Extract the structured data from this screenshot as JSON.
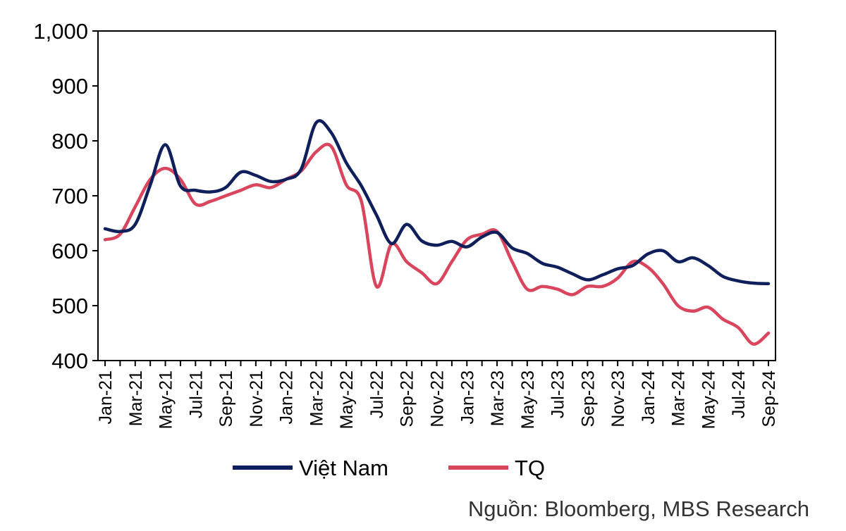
{
  "chart_data": {
    "type": "line",
    "ylim": [
      400,
      1000
    ],
    "yticks": [
      400,
      500,
      600,
      700,
      800,
      900,
      1000
    ],
    "ytick_labels": [
      "400",
      "500",
      "600",
      "700",
      "800",
      "900",
      "1,000"
    ],
    "x": [
      "Jan-21",
      "Feb-21",
      "Mar-21",
      "Apr-21",
      "May-21",
      "Jun-21",
      "Jul-21",
      "Aug-21",
      "Sep-21",
      "Oct-21",
      "Nov-21",
      "Dec-21",
      "Jan-22",
      "Feb-22",
      "Mar-22",
      "Apr-22",
      "May-22",
      "Jun-22",
      "Jul-22",
      "Aug-22",
      "Sep-22",
      "Oct-22",
      "Nov-22",
      "Dec-22",
      "Jan-23",
      "Feb-23",
      "Mar-23",
      "Apr-23",
      "May-23",
      "Jun-23",
      "Jul-23",
      "Aug-23",
      "Sep-23",
      "Oct-23",
      "Nov-23",
      "Dec-23",
      "Jan-24",
      "Feb-24",
      "Mar-24",
      "Apr-24",
      "May-24",
      "Jun-24",
      "Jul-24",
      "Aug-24",
      "Sep-24"
    ],
    "xtick_labels": [
      "Jan-21",
      "Mar-21",
      "May-21",
      "Jul-21",
      "Sep-21",
      "Nov-21",
      "Jan-22",
      "Mar-22",
      "May-22",
      "Jul-22",
      "Sep-22",
      "Nov-22",
      "Jan-23",
      "Mar-23",
      "May-23",
      "Jul-23",
      "Sep-23",
      "Nov-23",
      "Jan-24",
      "Mar-24",
      "May-24",
      "Jul-24",
      "Sep-24"
    ],
    "series": [
      {
        "name": "Việt Nam",
        "color": "#0f1f5c",
        "values": [
          640,
          635,
          648,
          720,
          793,
          718,
          710,
          707,
          715,
          743,
          737,
          726,
          730,
          748,
          833,
          815,
          760,
          718,
          665,
          613,
          648,
          618,
          610,
          617,
          607,
          625,
          633,
          605,
          595,
          577,
          570,
          558,
          547,
          556,
          567,
          573,
          594,
          600,
          580,
          587,
          573,
          553,
          545,
          541,
          540
        ]
      },
      {
        "name": "TQ",
        "color": "#d9455c",
        "values": [
          620,
          630,
          680,
          730,
          750,
          730,
          685,
          690,
          700,
          710,
          720,
          715,
          730,
          745,
          780,
          790,
          720,
          690,
          535,
          612,
          580,
          560,
          540,
          580,
          620,
          630,
          635,
          580,
          530,
          535,
          530,
          520,
          535,
          535,
          550,
          580,
          570,
          540,
          500,
          490,
          497,
          475,
          460,
          430,
          450
        ]
      }
    ],
    "legend_position": "bottom"
  },
  "source_note": "Nguồn: Bloomberg, MBS Research"
}
